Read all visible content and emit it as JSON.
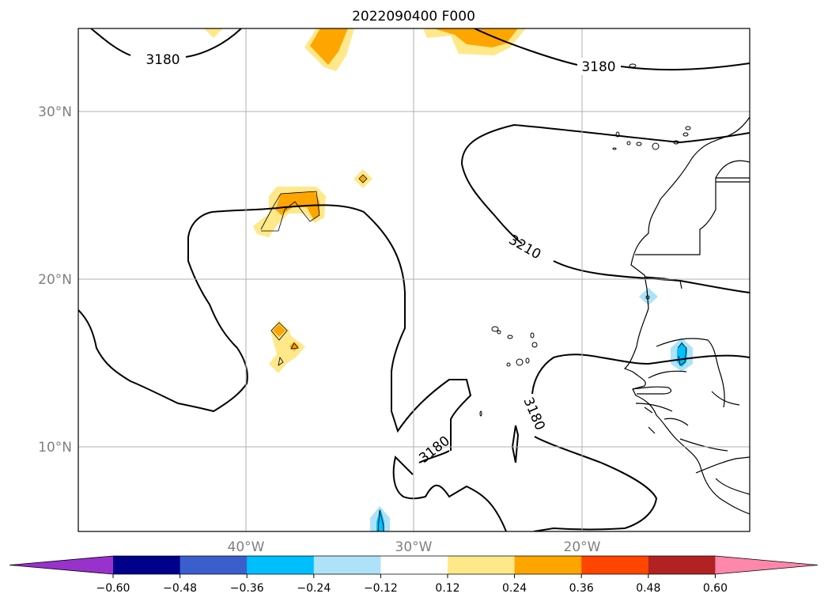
{
  "title": "2022090400 F000",
  "map": {
    "lat_labels": [
      "30°N",
      "20°N",
      "10°N"
    ],
    "lon_labels": [
      "40°W",
      "30°W",
      "20°W"
    ],
    "gridlines": true,
    "contour_labels": [
      "3180",
      "3180",
      "3210",
      "3180",
      "3180"
    ]
  },
  "colorbar": {
    "ticks": [
      "−0.60",
      "−0.48",
      "−0.36",
      "−0.24",
      "−0.12",
      "0.12",
      "0.24",
      "0.36",
      "0.48",
      "0.60"
    ],
    "colors": [
      "#9932cc",
      "#00008b",
      "#3a5fcd",
      "#00bfff",
      "#aee2f8",
      "#ffffff",
      "#ffe88a",
      "#ffa500",
      "#ff4500",
      "#b22222",
      "#ff88aa"
    ],
    "extend": "both"
  },
  "colors": {
    "coast": "#000000",
    "contour": "#000000",
    "grid": "#b0b0b0",
    "yellow": "#ffe88a",
    "orange": "#ffa500",
    "lightblue": "#aee2f8",
    "cyan": "#00bfff"
  }
}
